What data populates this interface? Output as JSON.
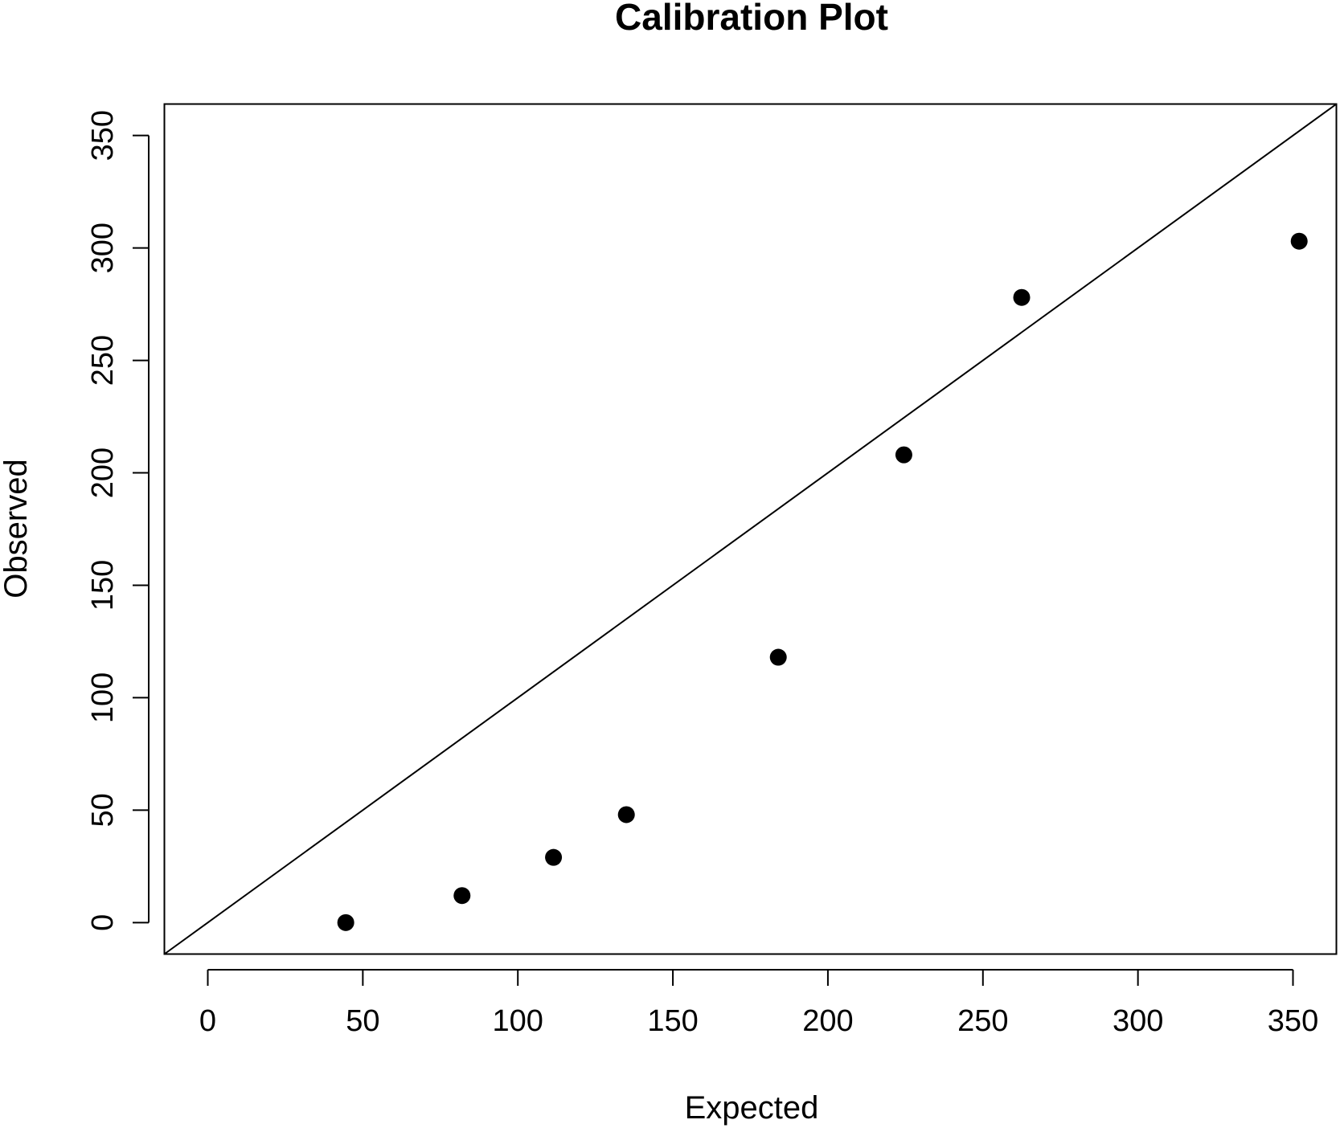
{
  "chart_data": {
    "type": "scatter",
    "title": "Calibration Plot",
    "xlabel": "Expected",
    "ylabel": "Observed",
    "xlim": [
      -14,
      364
    ],
    "ylim": [
      -14,
      364
    ],
    "x_ticks": [
      0,
      50,
      100,
      150,
      200,
      250,
      300,
      350
    ],
    "y_ticks": [
      0,
      50,
      100,
      150,
      200,
      250,
      300,
      350
    ],
    "grid": false,
    "reference_line": {
      "type": "identity",
      "slope": 1,
      "intercept": 0
    },
    "series": [
      {
        "points": [
          {
            "x": 44.5,
            "y": 0
          },
          {
            "x": 82,
            "y": 12
          },
          {
            "x": 111.5,
            "y": 29
          },
          {
            "x": 135,
            "y": 48
          },
          {
            "x": 184,
            "y": 118
          },
          {
            "x": 224.5,
            "y": 208
          },
          {
            "x": 262.5,
            "y": 278
          },
          {
            "x": 352,
            "y": 303
          }
        ]
      }
    ],
    "colors": {
      "points": "#000000",
      "line": "#000000",
      "background": "#ffffff"
    }
  }
}
